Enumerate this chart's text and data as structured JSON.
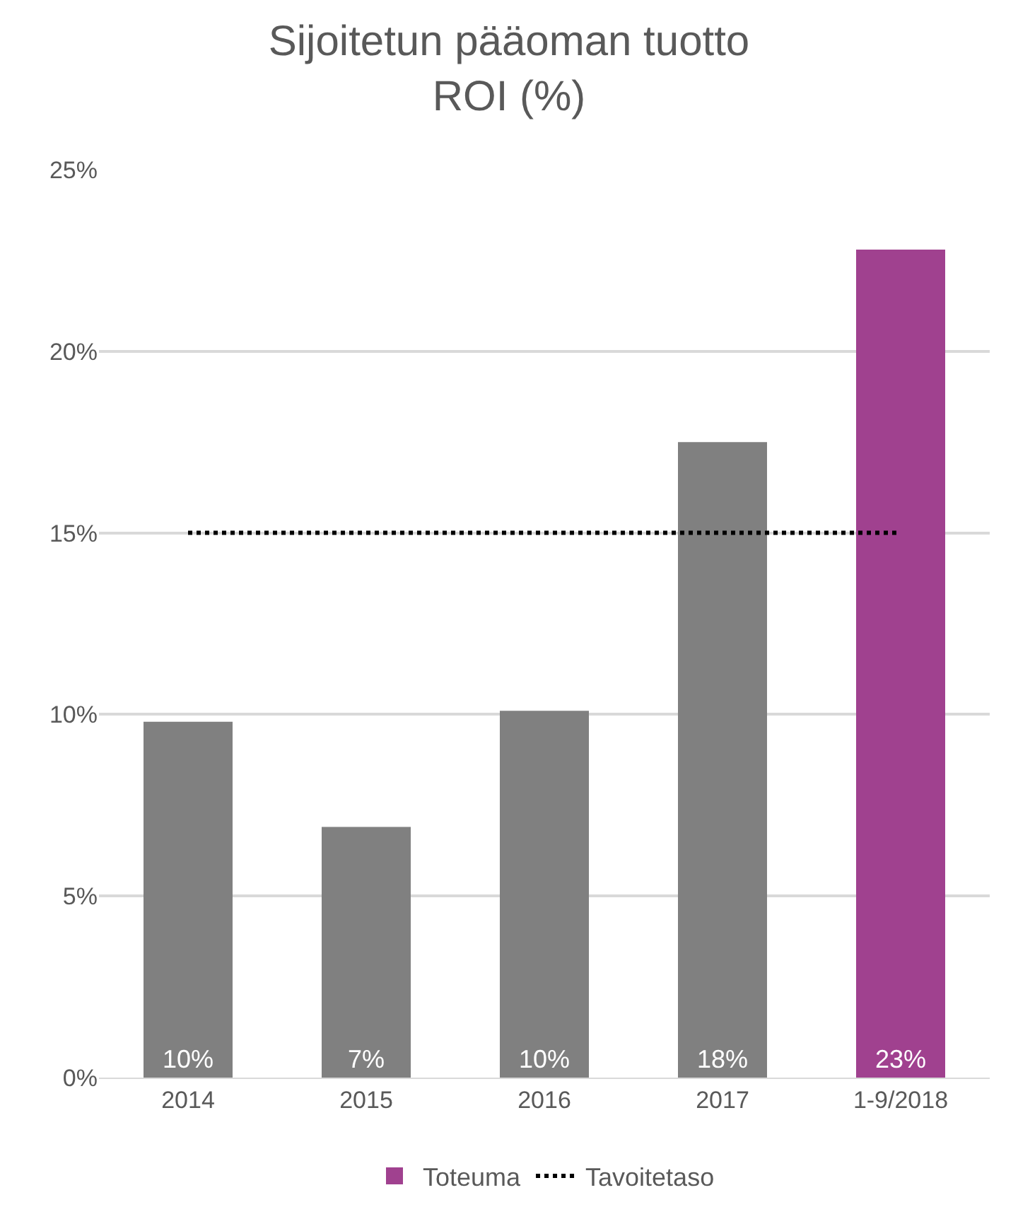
{
  "chart_data": {
    "type": "bar",
    "title": "Sijoitetun pääoman tuotto",
    "subtitle": "ROI (%)",
    "categories": [
      "2014",
      "2015",
      "2016",
      "2017",
      "1-9/2018"
    ],
    "series": [
      {
        "name": "Toteuma",
        "colors": [
          "#808080",
          "#808080",
          "#808080",
          "#808080",
          "#a0418f"
        ],
        "color": "#a0418f",
        "values": [
          9.8,
          6.9,
          10.1,
          17.5,
          22.8
        ],
        "value_labels": [
          "10%",
          "7%",
          "10%",
          "18%",
          "23%"
        ]
      },
      {
        "name": "Tavoitetaso",
        "type": "line",
        "color": "#000000",
        "line_style": "dotted",
        "values": [
          15,
          15,
          15,
          15,
          15
        ]
      }
    ],
    "ylim": [
      0,
      25
    ],
    "yticks": [
      {
        "value": 0,
        "label": "0%"
      },
      {
        "value": 5,
        "label": "5%"
      },
      {
        "value": 10,
        "label": "10%"
      },
      {
        "value": 15,
        "label": "15%"
      },
      {
        "value": 20,
        "label": "20%"
      },
      {
        "value": 25,
        "label": "25%"
      }
    ],
    "grid": "y",
    "legend": "bottom"
  }
}
